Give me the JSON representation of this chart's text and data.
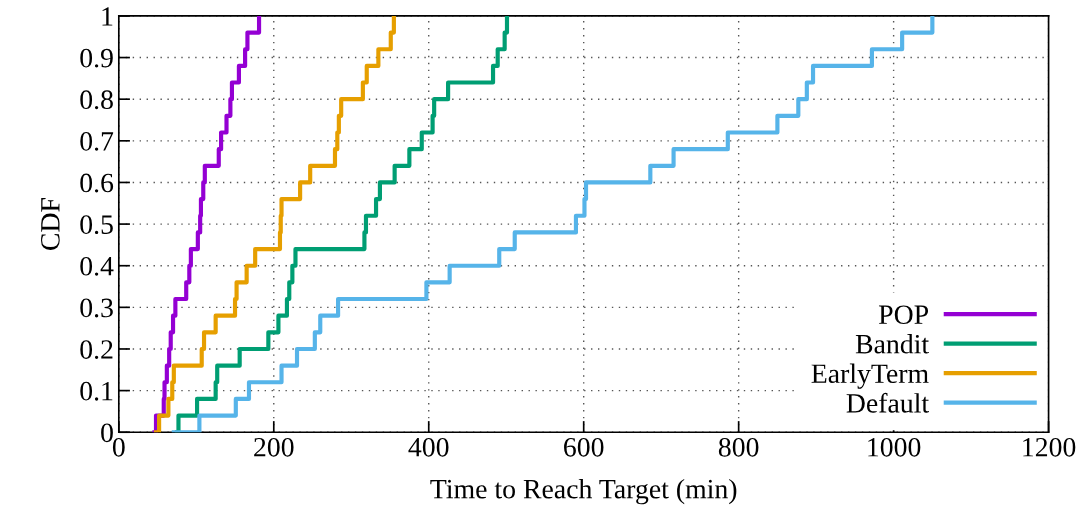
{
  "chart_data": {
    "type": "step",
    "xlabel": "Time to Reach Target (min)",
    "ylabel": "CDF",
    "xlim": [
      0,
      1200
    ],
    "xticks": [
      0,
      200,
      400,
      600,
      800,
      1000,
      1200
    ],
    "ylim": [
      0,
      1
    ],
    "yticks": [
      0,
      0.1,
      0.2,
      0.3,
      0.4,
      0.5,
      0.6,
      0.7,
      0.8,
      0.9,
      1
    ],
    "grid": true,
    "legend": "bottom right",
    "line_style": "solid",
    "marker": "none",
    "series": [
      {
        "name": "POP",
        "color": "#9400d3",
        "x": [
          46,
          48,
          58,
          59,
          62,
          65,
          67,
          70,
          73,
          87,
          91,
          93,
          102,
          105,
          106,
          109,
          111,
          129,
          132,
          139,
          144,
          146,
          155,
          163,
          166,
          181
        ],
        "values": [
          0,
          0.04,
          0.08,
          0.12,
          0.16,
          0.2,
          0.24,
          0.28,
          0.32,
          0.36,
          0.4,
          0.44,
          0.48,
          0.52,
          0.56,
          0.6,
          0.64,
          0.68,
          0.72,
          0.76,
          0.8,
          0.84,
          0.88,
          0.92,
          0.96,
          1
        ]
      },
      {
        "name": "Bandit",
        "color": "#009e73",
        "x": [
          75,
          77,
          101,
          125,
          127,
          156,
          193,
          206,
          217,
          220,
          224,
          228,
          317,
          319,
          332,
          337,
          356,
          375,
          391,
          405,
          407,
          425,
          483,
          489,
          498,
          501
        ],
        "values": [
          0,
          0.04,
          0.08,
          0.12,
          0.16,
          0.2,
          0.24,
          0.28,
          0.32,
          0.36,
          0.4,
          0.44,
          0.48,
          0.52,
          0.56,
          0.6,
          0.64,
          0.68,
          0.72,
          0.76,
          0.8,
          0.84,
          0.88,
          0.92,
          0.96,
          1
        ]
      },
      {
        "name": "EarlyTerm",
        "color": "#e69f00",
        "x": [
          48,
          52,
          64,
          69,
          71,
          107,
          110,
          125,
          150,
          152,
          165,
          176,
          208,
          209,
          210,
          234,
          247,
          279,
          282,
          284,
          287,
          315,
          320,
          335,
          351,
          355
        ],
        "values": [
          0,
          0.04,
          0.08,
          0.12,
          0.16,
          0.2,
          0.24,
          0.28,
          0.32,
          0.36,
          0.4,
          0.44,
          0.48,
          0.52,
          0.56,
          0.6,
          0.64,
          0.68,
          0.72,
          0.76,
          0.8,
          0.84,
          0.88,
          0.92,
          0.96,
          1
        ]
      },
      {
        "name": "Default",
        "color": "#56b4e9",
        "x": [
          71,
          104,
          151,
          168,
          210,
          230,
          253,
          260,
          283,
          397,
          427,
          491,
          511,
          590,
          601,
          603,
          686,
          716,
          786,
          850,
          877,
          888,
          896,
          972,
          1011,
          1050
        ],
        "values": [
          0,
          0.04,
          0.08,
          0.12,
          0.16,
          0.2,
          0.24,
          0.28,
          0.32,
          0.36,
          0.4,
          0.44,
          0.48,
          0.52,
          0.56,
          0.6,
          0.64,
          0.68,
          0.72,
          0.76,
          0.8,
          0.84,
          0.88,
          0.92,
          0.96,
          1
        ]
      }
    ]
  }
}
